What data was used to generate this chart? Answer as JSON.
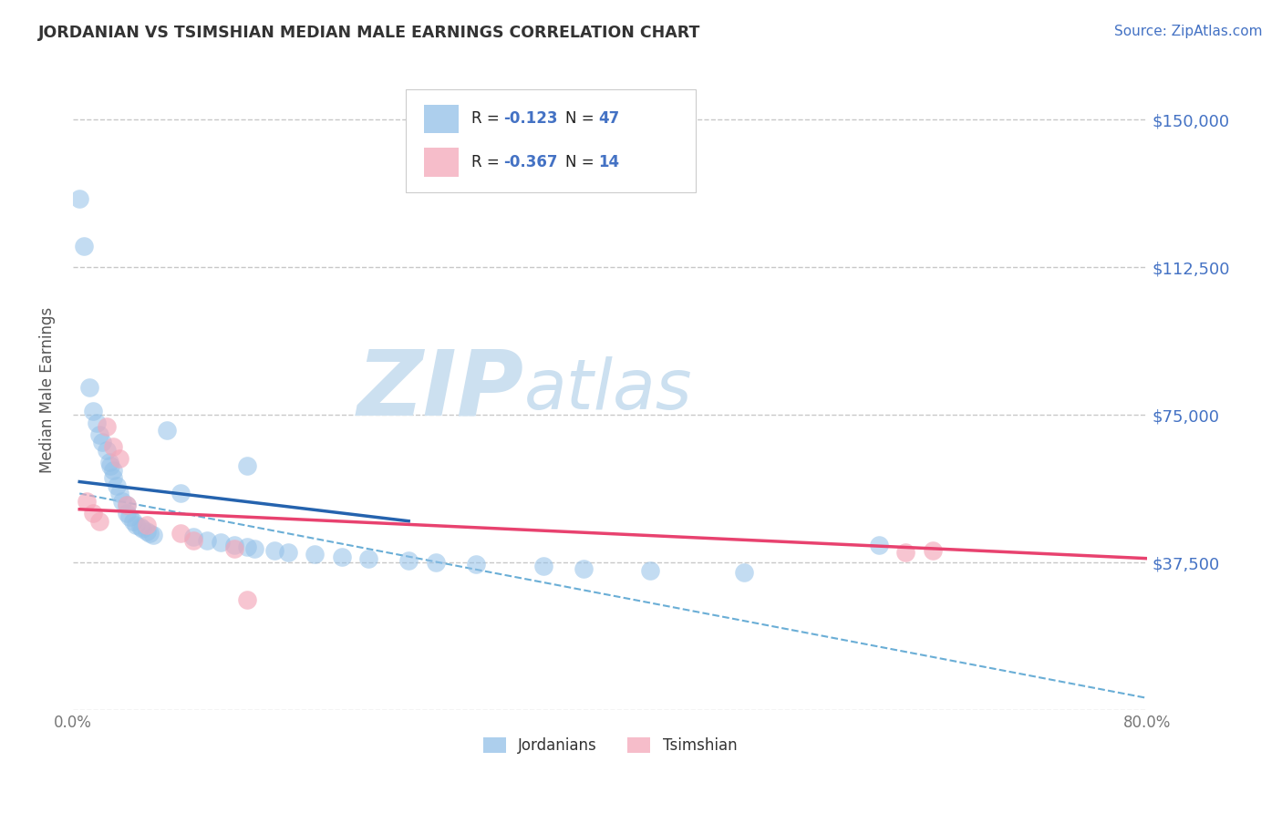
{
  "title": "JORDANIAN VS TSIMSHIAN MEDIAN MALE EARNINGS CORRELATION CHART",
  "source_text": "Source: ZipAtlas.com",
  "ylabel": "Median Male Earnings",
  "xlim": [
    0.0,
    0.8
  ],
  "ylim": [
    0,
    162500
  ],
  "yticks": [
    0,
    37500,
    75000,
    112500,
    150000
  ],
  "ytick_labels": [
    "",
    "$37,500",
    "$75,000",
    "$112,500",
    "$150,000"
  ],
  "xticks": [
    0.0,
    0.1,
    0.2,
    0.3,
    0.4,
    0.5,
    0.6,
    0.7,
    0.8
  ],
  "xtick_labels": [
    "0.0%",
    "",
    "",
    "",
    "",
    "",
    "",
    "",
    "80.0%"
  ],
  "background_color": "#ffffff",
  "plot_background": "#ffffff",
  "grid_color": "#c8c8c8",
  "title_color": "#333333",
  "source_color": "#4472c4",
  "yaxis_label_color": "#555555",
  "ytick_color": "#4472c4",
  "xtick_color": "#777777",
  "legend_r1_label": "R = ",
  "legend_r1_val": "-0.123",
  "legend_n1_label": "N = ",
  "legend_n1_val": "47",
  "legend_r2_label": "R = ",
  "legend_r2_val": "-0.367",
  "legend_n2_label": "N = ",
  "legend_n2_val": "14",
  "legend_label1": "Jordanians",
  "legend_label2": "Tsimshian",
  "blue_color": "#92C0E8",
  "pink_color": "#F4A7B9",
  "line_blue": "#2563AE",
  "line_pink": "#E8426F",
  "line_dashed_color": "#6aaed6",
  "blue_scatter_x": [
    0.005,
    0.008,
    0.012,
    0.015,
    0.018,
    0.02,
    0.022,
    0.025,
    0.027,
    0.028,
    0.03,
    0.03,
    0.033,
    0.035,
    0.037,
    0.04,
    0.04,
    0.042,
    0.045,
    0.047,
    0.05,
    0.052,
    0.055,
    0.057,
    0.06,
    0.07,
    0.08,
    0.09,
    0.1,
    0.11,
    0.12,
    0.13,
    0.135,
    0.15,
    0.16,
    0.18,
    0.2,
    0.22,
    0.13,
    0.25,
    0.27,
    0.3,
    0.35,
    0.38,
    0.43,
    0.5,
    0.6
  ],
  "blue_scatter_y": [
    130000,
    118000,
    82000,
    76000,
    73000,
    70000,
    68000,
    66000,
    63000,
    62000,
    61000,
    59000,
    57000,
    55000,
    53000,
    52000,
    50000,
    49000,
    48000,
    47000,
    46500,
    46000,
    45500,
    45000,
    44500,
    71000,
    55000,
    44000,
    43000,
    42500,
    42000,
    41500,
    41000,
    40500,
    40000,
    39500,
    39000,
    38500,
    62000,
    38000,
    37500,
    37000,
    36500,
    36000,
    35500,
    35000,
    42000
  ],
  "pink_scatter_x": [
    0.01,
    0.015,
    0.02,
    0.025,
    0.03,
    0.035,
    0.04,
    0.055,
    0.08,
    0.09,
    0.12,
    0.13,
    0.62,
    0.64
  ],
  "pink_scatter_y": [
    53000,
    50000,
    48000,
    72000,
    67000,
    64000,
    52000,
    47000,
    45000,
    43000,
    41000,
    28000,
    40000,
    40500
  ],
  "blue_line_x": [
    0.005,
    0.25
  ],
  "blue_line_y": [
    58000,
    48000
  ],
  "pink_line_x": [
    0.005,
    0.8
  ],
  "pink_line_y": [
    51000,
    38500
  ],
  "dashed_line_x": [
    0.005,
    0.8
  ],
  "dashed_line_y": [
    55000,
    3000
  ],
  "watermark_zip": "ZIP",
  "watermark_atlas": "atlas",
  "watermark_color": "#cce0f0",
  "figsize": [
    14.06,
    8.92
  ],
  "dpi": 100
}
